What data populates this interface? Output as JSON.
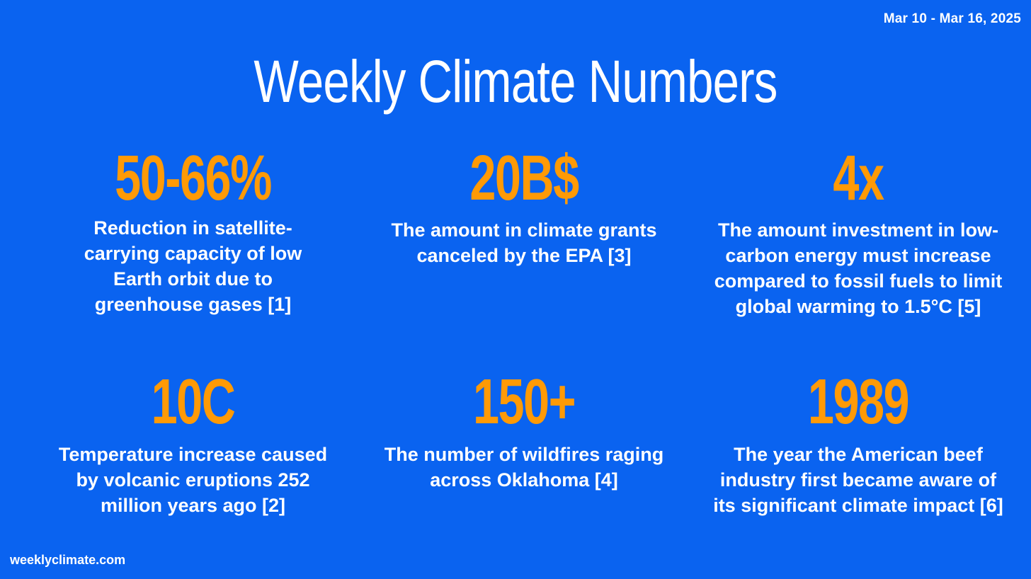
{
  "header": {
    "date_range": "Mar 10 - Mar 16, 2025",
    "title": "Weekly Climate Numbers"
  },
  "stats": [
    {
      "number": "50-66%",
      "description": "Reduction in satellite-carrying capacity of low Earth orbit due to greenhouse gases [1]"
    },
    {
      "number": "20B$",
      "description": "The amount in climate grants canceled by the EPA [3]"
    },
    {
      "number": "4x",
      "description": "The amount investment in low-carbon energy must increase compared to fossil fuels to limit global warming to 1.5°C [5]"
    },
    {
      "number": "10C",
      "description": "Temperature increase caused by volcanic eruptions 252 million years ago [2]"
    },
    {
      "number": "150+",
      "description": "The number of wildfires raging across Oklahoma [4]"
    },
    {
      "number": "1989",
      "description": "The year the American beef industry first became aware of its significant climate impact [6]"
    }
  ],
  "footer": {
    "site": "weeklyclimate.com"
  },
  "colors": {
    "background": "#0a63f0",
    "accent_number": "#ff9a06",
    "text": "#ffffff"
  }
}
